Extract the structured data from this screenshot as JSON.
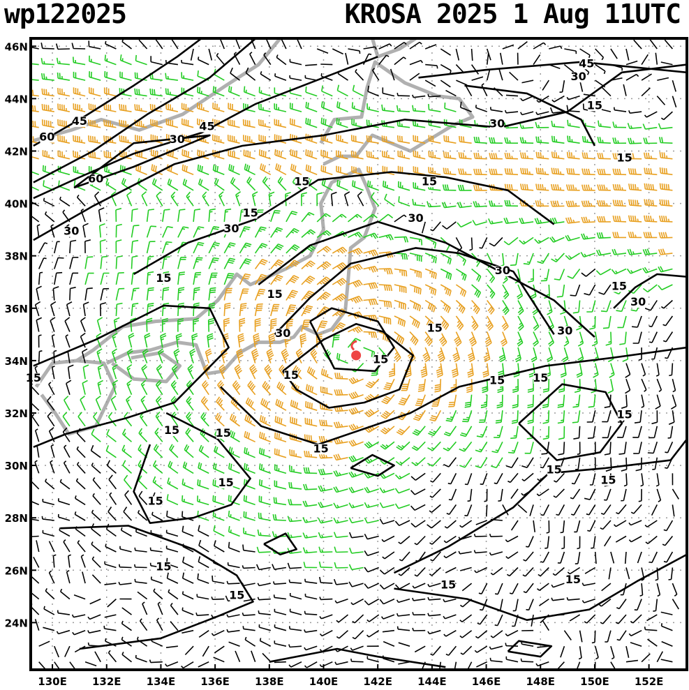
{
  "header": {
    "storm_id": "wp122025",
    "storm_title": "KROSA 2025   1 Aug  11UTC"
  },
  "map": {
    "lon_range": [
      129.2,
      153.4
    ],
    "lat_range": [
      22.2,
      46.3
    ],
    "lat_ticks": [
      "24N",
      "26N",
      "28N",
      "30N",
      "32N",
      "34N",
      "36N",
      "38N",
      "40N",
      "42N",
      "44N",
      "46N"
    ],
    "lat_tick_values": [
      24,
      26,
      28,
      30,
      32,
      34,
      36,
      38,
      40,
      42,
      44,
      46
    ],
    "lon_ticks": [
      "130E",
      "132E",
      "134E",
      "136E",
      "138E",
      "140E",
      "142E",
      "144E",
      "146E",
      "148E",
      "150E",
      "152E"
    ],
    "lon_tick_values": [
      130,
      132,
      134,
      136,
      138,
      140,
      142,
      144,
      146,
      148,
      150,
      152
    ],
    "storm_center": {
      "lon": 141.2,
      "lat": 34.2
    },
    "contour_labels": [
      {
        "text": "45",
        "lon": 131.0,
        "lat": 43.0
      },
      {
        "text": "60",
        "lon": 129.8,
        "lat": 42.4
      },
      {
        "text": "60",
        "lon": 131.6,
        "lat": 40.8
      },
      {
        "text": "30",
        "lon": 130.7,
        "lat": 38.8
      },
      {
        "text": "45",
        "lon": 135.7,
        "lat": 42.8
      },
      {
        "text": "30",
        "lon": 134.6,
        "lat": 42.3
      },
      {
        "text": "15",
        "lon": 139.2,
        "lat": 40.7
      },
      {
        "text": "15",
        "lon": 137.3,
        "lat": 39.5
      },
      {
        "text": "30",
        "lon": 136.6,
        "lat": 38.9
      },
      {
        "text": "15",
        "lon": 134.1,
        "lat": 37.0
      },
      {
        "text": "15",
        "lon": 138.2,
        "lat": 36.4
      },
      {
        "text": "30",
        "lon": 138.5,
        "lat": 34.9
      },
      {
        "text": "15",
        "lon": 138.8,
        "lat": 33.3
      },
      {
        "text": "15",
        "lon": 142.1,
        "lat": 33.9
      },
      {
        "text": "15",
        "lon": 144.1,
        "lat": 35.1
      },
      {
        "text": "15",
        "lon": 143.9,
        "lat": 40.7
      },
      {
        "text": "30",
        "lon": 143.4,
        "lat": 39.3
      },
      {
        "text": "30",
        "lon": 146.6,
        "lat": 37.3
      },
      {
        "text": "15",
        "lon": 146.4,
        "lat": 33.1
      },
      {
        "text": "15",
        "lon": 148.0,
        "lat": 33.2
      },
      {
        "text": "30",
        "lon": 151.6,
        "lat": 36.1
      },
      {
        "text": "15",
        "lon": 150.9,
        "lat": 36.7
      },
      {
        "text": "30",
        "lon": 148.9,
        "lat": 35.0
      },
      {
        "text": "45",
        "lon": 149.7,
        "lat": 45.2
      },
      {
        "text": "30",
        "lon": 149.4,
        "lat": 44.7
      },
      {
        "text": "30",
        "lon": 146.4,
        "lat": 42.9
      },
      {
        "text": "15",
        "lon": 150.0,
        "lat": 43.6
      },
      {
        "text": "15",
        "lon": 151.1,
        "lat": 41.6
      },
      {
        "text": "15",
        "lon": 134.4,
        "lat": 31.2
      },
      {
        "text": "15",
        "lon": 136.3,
        "lat": 31.1
      },
      {
        "text": "15",
        "lon": 139.9,
        "lat": 30.5
      },
      {
        "text": "15",
        "lon": 136.4,
        "lat": 29.2
      },
      {
        "text": "15",
        "lon": 133.8,
        "lat": 28.5
      },
      {
        "text": "15",
        "lon": 134.1,
        "lat": 26.0
      },
      {
        "text": "15",
        "lon": 136.8,
        "lat": 24.9
      },
      {
        "text": "15",
        "lon": 144.6,
        "lat": 25.3
      },
      {
        "text": "15",
        "lon": 148.5,
        "lat": 29.7
      },
      {
        "text": "15",
        "lon": 150.5,
        "lat": 29.3
      },
      {
        "text": "15",
        "lon": 151.1,
        "lat": 31.8
      },
      {
        "text": "15",
        "lon": 149.2,
        "lat": 25.5
      },
      {
        "text": "15",
        "lon": 129.3,
        "lat": 33.2
      }
    ],
    "colors": {
      "calm": "#000000",
      "light": "#22cc22",
      "moderate": "#e8a020",
      "strong": "#ee4444",
      "land": "#b0b0b0",
      "grid": "#9a9a9a",
      "storm": "#ee4444"
    }
  }
}
